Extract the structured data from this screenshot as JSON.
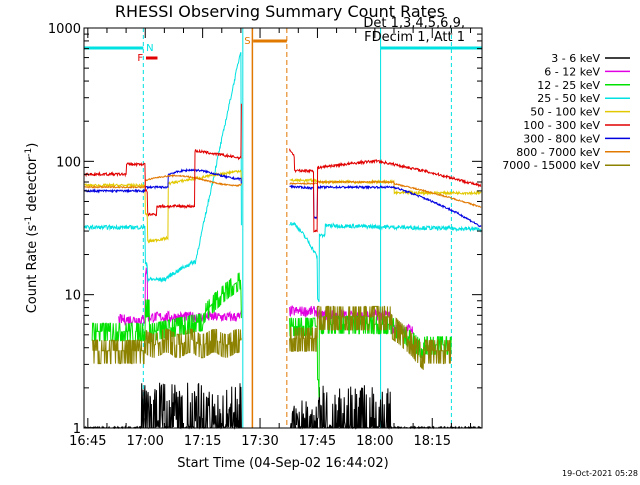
{
  "chart_data": {
    "type": "line",
    "title": "RHESSI Observing Summary Count Rates",
    "xlabel": "Start Time (04-Sep-02 16:44:02)",
    "ylabel": "Count Rate (s⁻¹ detector⁻¹)",
    "ylabel_parts": [
      "Count Rate (s",
      "-1",
      " detector",
      "-1",
      ")"
    ],
    "y_scale": "log",
    "ylim": [
      1,
      1000
    ],
    "y_ticks": [
      {
        "v": 1,
        "label": "1"
      },
      {
        "v": 10,
        "label": "10"
      },
      {
        "v": 100,
        "label": "100"
      },
      {
        "v": 1000,
        "label": "1000"
      }
    ],
    "x_range_min": [
      -1,
      103
    ],
    "x_ticks": [
      {
        "m": 0,
        "label": "16:45"
      },
      {
        "m": 15,
        "label": "17:00"
      },
      {
        "m": 30,
        "label": "17:15"
      },
      {
        "m": 45,
        "label": "17:30"
      },
      {
        "m": 60,
        "label": "17:45"
      },
      {
        "m": 75,
        "label": "18:00"
      },
      {
        "m": 90,
        "label": "18:15"
      }
    ],
    "legend_title": [
      "Det 1,3,4,5,6,9,",
      "FDecim 1, Att 1"
    ],
    "legend_position": "right",
    "series": [
      {
        "name": "3 - 6 keV",
        "color": "#000000"
      },
      {
        "name": "6 - 12 keV",
        "color": "#e100e1"
      },
      {
        "name": "12 - 25 keV",
        "color": "#00e100"
      },
      {
        "name": "25 - 50 keV",
        "color": "#00e1e1"
      },
      {
        "name": "50 - 100 keV",
        "color": "#e1c800"
      },
      {
        "name": "100 - 300 keV",
        "color": "#e10000"
      },
      {
        "name": "300 - 800 keV",
        "color": "#0000e1"
      },
      {
        "name": "800 - 7000 keV",
        "color": "#e17800"
      },
      {
        "name": "7000 - 15000 keV",
        "color": "#8c8200"
      }
    ],
    "markers": [
      {
        "label": "N",
        "color": "#00e1e1"
      },
      {
        "label": "F",
        "color": "#e10000"
      },
      {
        "label": "S",
        "color": "#e17800"
      }
    ],
    "timestamp": "19-Oct-2021 05:28"
  }
}
